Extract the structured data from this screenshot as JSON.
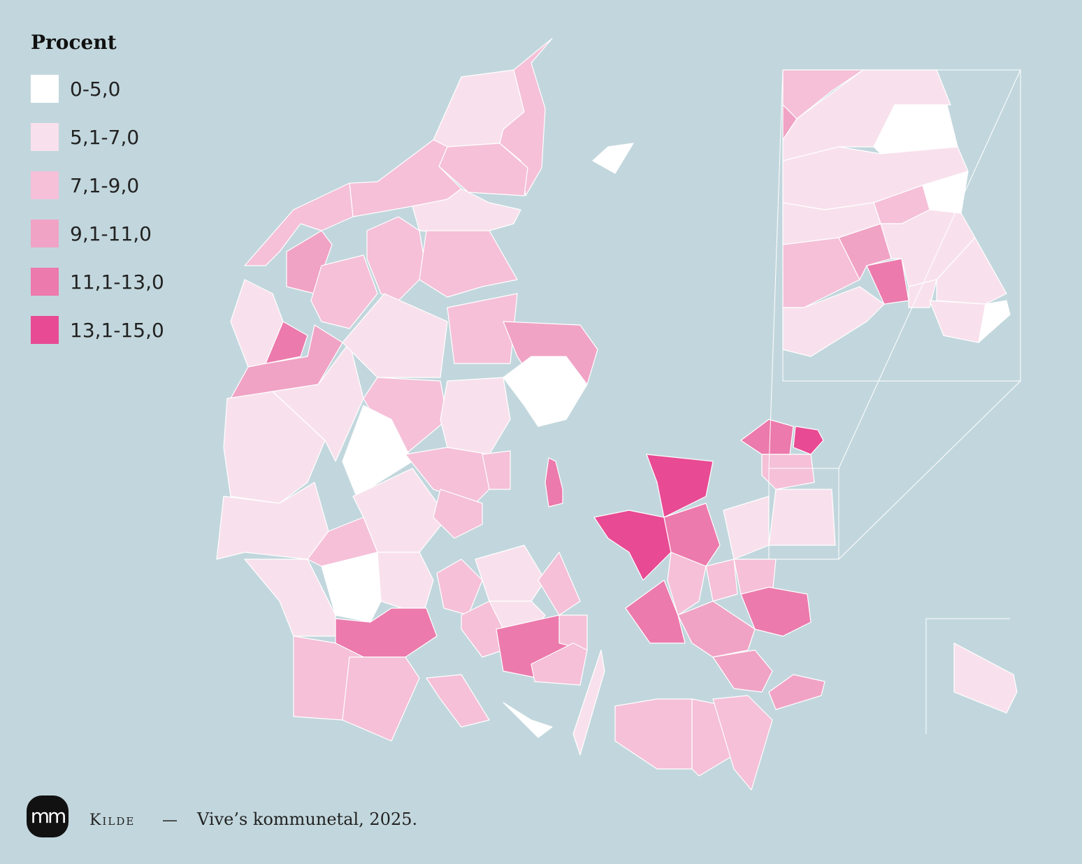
{
  "legend": {
    "title": "Procent",
    "items": [
      {
        "label": "0-5,0",
        "color": "#ffffff"
      },
      {
        "label": "5,1-7,0",
        "color": "#f8e1ec"
      },
      {
        "label": "7,1-9,0",
        "color": "#f5c0d8"
      },
      {
        "label": "9,1-11,0",
        "color": "#f0a3c5"
      },
      {
        "label": "11,1-13,0",
        "color": "#ec7aac"
      },
      {
        "label": "13,1-15,0",
        "color": "#e84a93"
      }
    ]
  },
  "source": {
    "label": "Kilde",
    "separator": "—",
    "text": "Vive’s kommunetal, 2025."
  },
  "logo": "mm"
}
